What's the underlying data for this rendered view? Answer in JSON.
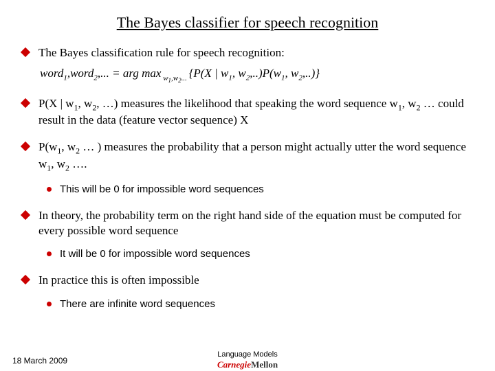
{
  "title": "The Bayes classifier for speech recognition",
  "bullets": {
    "b1": "The Bayes classification rule for speech recognition:",
    "b2_pre": "P(X | w",
    "b2_mid1": ", w",
    "b2_mid2": ", …) measures the likelihood that speaking the word sequence w",
    "b2_mid3": ", w",
    "b2_end": " … could result in the data (feature vector sequence) X",
    "b3_pre": "P(w",
    "b3_mid1": ", w",
    "b3_mid2": " … ) measures the probability that a person might actually utter the word sequence w",
    "b3_mid3": ", w",
    "b3_end": " ….",
    "s3": "This will be 0 for impossible word sequences",
    "b4": "In theory, the probability term on the right hand side of the equation must be computed for every possible word sequence",
    "s4": "It will be 0 for impossible word sequences",
    "b5": "In practice this is often impossible",
    "s5": "There are infinite word sequences"
  },
  "equation": {
    "lhs": "word",
    "comma": ",",
    "dots": ",... = arg max",
    "open": "{P(X | w",
    "mid1": ", w",
    "mid2": ",..)P(w",
    "mid3": ", w",
    "close": ",..)}"
  },
  "sub": {
    "one": "1",
    "two": "2",
    "w1": "w",
    "w2": "w",
    "ss1": "1",
    "ss2": "2"
  },
  "footer": {
    "date": "18 March 2009",
    "lm": "Language Models",
    "carnegie": "Carnegie",
    "mellon": "Mellon"
  },
  "colors": {
    "accent": "#cc0000",
    "text": "#000000",
    "bg": "#ffffff"
  }
}
